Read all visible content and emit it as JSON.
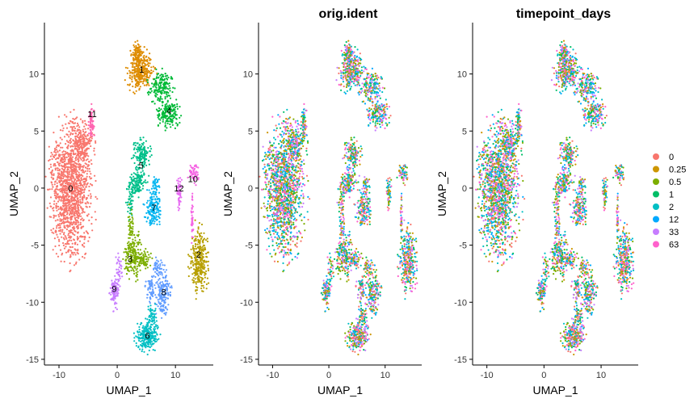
{
  "chart_data": [
    {
      "type": "scatter",
      "title": "",
      "xlabel": "UMAP_1",
      "ylabel": "UMAP_2",
      "xticks": [
        -10,
        0,
        10
      ],
      "yticks": [
        -15,
        -10,
        -5,
        0,
        5,
        10
      ],
      "xlim": [
        -12.5,
        16.5
      ],
      "ylim": [
        -15.5,
        14.5
      ],
      "color_by": "seurat_clusters",
      "cluster_labels": [
        {
          "label": "0",
          "x": -8.0,
          "y": 0.0
        },
        {
          "label": "1",
          "x": 4.2,
          "y": 10.4
        },
        {
          "label": "2",
          "x": 14.0,
          "y": -5.8
        },
        {
          "label": "3",
          "x": 2.2,
          "y": -6.2
        },
        {
          "label": "4",
          "x": 8.9,
          "y": 6.8
        },
        {
          "label": "5",
          "x": 4.1,
          "y": 2.0
        },
        {
          "label": "6",
          "x": 5.2,
          "y": -12.9
        },
        {
          "label": "7",
          "x": 6.3,
          "y": -1.7
        },
        {
          "label": "8",
          "x": 8.0,
          "y": -9.1
        },
        {
          "label": "9",
          "x": -0.5,
          "y": -8.8
        },
        {
          "label": "10",
          "x": 13.0,
          "y": 0.8
        },
        {
          "label": "11",
          "x": -4.3,
          "y": 6.5
        },
        {
          "label": "12",
          "x": 10.6,
          "y": 0.0
        }
      ]
    },
    {
      "type": "scatter",
      "title": "orig.ident",
      "xlabel": "UMAP_1",
      "ylabel": "UMAP_2",
      "xticks": [
        -10,
        0,
        10
      ],
      "yticks": [
        -15,
        -10,
        -5,
        0,
        5,
        10
      ],
      "xlim": [
        -12.5,
        16.5
      ],
      "ylim": [
        -15.5,
        14.5
      ],
      "color_by": "orig.ident"
    },
    {
      "type": "scatter",
      "title": "timepoint_days",
      "xlabel": "UMAP_1",
      "ylabel": "UMAP_2",
      "xticks": [
        -10,
        0,
        10
      ],
      "yticks": [
        -15,
        -10,
        -5,
        0,
        5,
        10
      ],
      "xlim": [
        -12.5,
        16.5
      ],
      "ylim": [
        -15.5,
        14.5
      ],
      "color_by": "timepoint_days",
      "legend_placement": "right",
      "legend": [
        {
          "label": "0",
          "color": "#F8766D"
        },
        {
          "label": "0.25",
          "color": "#CD9600"
        },
        {
          "label": "0.5",
          "color": "#7CAE00"
        },
        {
          "label": "1",
          "color": "#00BE67"
        },
        {
          "label": "2",
          "color": "#00BFC4"
        },
        {
          "label": "12",
          "color": "#00A9FF"
        },
        {
          "label": "33",
          "color": "#C77CFF"
        },
        {
          "label": "63",
          "color": "#FF61CC"
        }
      ]
    }
  ],
  "cluster_colors": [
    "#F8766D",
    "#DE8C00",
    "#B79F00",
    "#7CAE00",
    "#00BA38",
    "#00C08B",
    "#00BFC4",
    "#00B4F0",
    "#619CFF",
    "#C77CFF",
    "#F564E3",
    "#FF64B0",
    "#E76BF3"
  ],
  "sample_colors": [
    "#F8766D",
    "#CD9600",
    "#7CAE00",
    "#00BE67",
    "#00BFC4",
    "#00A9FF",
    "#C77CFF",
    "#FF61CC"
  ]
}
